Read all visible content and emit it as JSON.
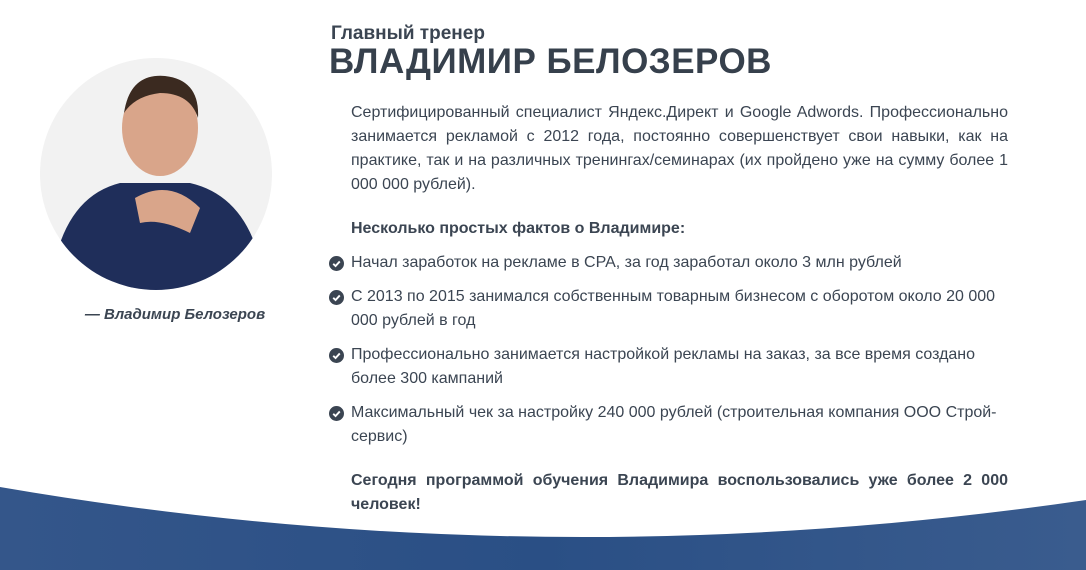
{
  "profile": {
    "subtitle": "Главный тренер",
    "name": "ВЛАДИМИР БЕЛОЗЕРОВ",
    "caption": "— Владимир Белозеров",
    "bio": "Сертифицированный специалист Яндекс.Директ и Google Adwords. Профессионально занимается рекламой с 2012 года, постоянно совершенствует свои навыки, как на практике, так и на различных тренингах/семинарах (их пройдено уже на сумму более 1 000 000 рублей).",
    "facts_heading": "Несколько простых фактов о Владимире:",
    "facts": [
      "Начал заработок на рекламе в CPA, за год заработал около 3 млн рублей",
      "С 2013 по 2015 занимался собственным товарным бизнесом с оборотом около 20 000 000 рублей в год",
      "Профессионально занимается настройкой рекламы на заказ, за все время создано более 300 кампаний",
      "Максимальный чек за настройку 240 000 рублей (строительная компания ООО Строй-сервис)"
    ],
    "final": "Сегодня программой обучения Владимира воспользовались уже более 2 000 человек!"
  },
  "colors": {
    "text": "#3b4552",
    "wave": "#2e5183",
    "check": "#3b4552"
  },
  "icons": {
    "fact": "check-circle-icon"
  }
}
